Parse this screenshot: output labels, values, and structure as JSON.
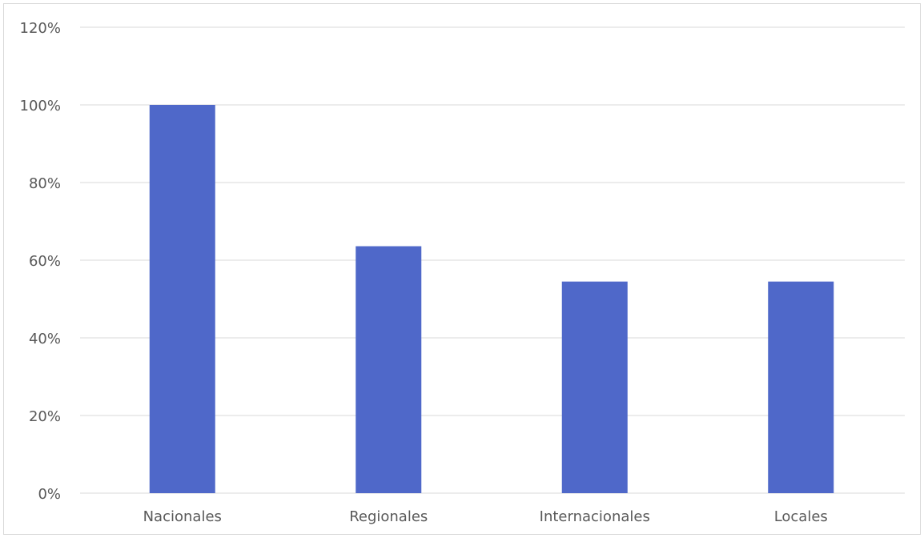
{
  "chart_data": {
    "type": "bar",
    "title": "",
    "xlabel": "",
    "ylabel": "",
    "categories": [
      "Nacionales",
      "Regionales",
      "Internacionales",
      "Locales"
    ],
    "values": [
      100,
      63.6,
      54.5,
      54.5
    ],
    "y_ticks": [
      "0%",
      "20%",
      "40%",
      "60%",
      "80%",
      "100%",
      "120%"
    ],
    "ylim": [
      0,
      120
    ],
    "y_tick_step": 20,
    "grid": true,
    "legend": "none",
    "bar_color": "#4f68c9",
    "grid_color": "#d9d9d9",
    "label_color": "#595959"
  }
}
